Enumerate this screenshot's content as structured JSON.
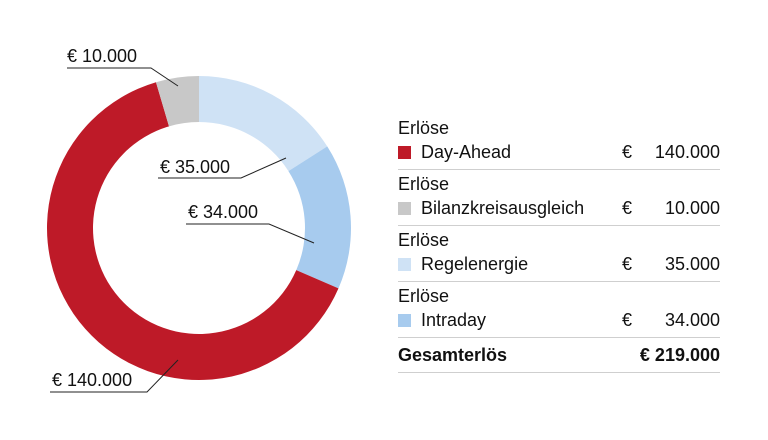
{
  "chart_data": {
    "type": "pie",
    "currency": "€",
    "slices": [
      {
        "name": "Day-Ahead",
        "value": 140000,
        "label": "€ 140.000",
        "color": "#be1a28"
      },
      {
        "name": "Bilanzkreisausgleich",
        "value": 10000,
        "label": "€ 10.000",
        "color": "#c8c8c8"
      },
      {
        "name": "Regelenergie",
        "value": 35000,
        "label": "€ 35.000",
        "color": "#cfe2f5"
      },
      {
        "name": "Intraday",
        "value": 34000,
        "label": "€ 34.000",
        "color": "#a7cbee"
      }
    ],
    "draw_order": [
      "Regelenergie",
      "Intraday",
      "Day-Ahead",
      "Bilanzkreisausgleich"
    ],
    "legend": {
      "placement": "right",
      "caption": "Erlöse",
      "items": [
        {
          "name": "Day-Ahead",
          "currency": "€",
          "amount": "140.000",
          "color": "#be1a28"
        },
        {
          "name": "Bilanzkreisausgleich",
          "currency": "€",
          "amount": "10.000",
          "color": "#c8c8c8"
        },
        {
          "name": "Regelenergie",
          "currency": "€",
          "amount": "35.000",
          "color": "#cfe2f5"
        },
        {
          "name": "Intraday",
          "currency": "€",
          "amount": "34.000",
          "color": "#a7cbee"
        }
      ],
      "total_label": "Gesamterlös",
      "total_value": "€ 219.000"
    }
  }
}
